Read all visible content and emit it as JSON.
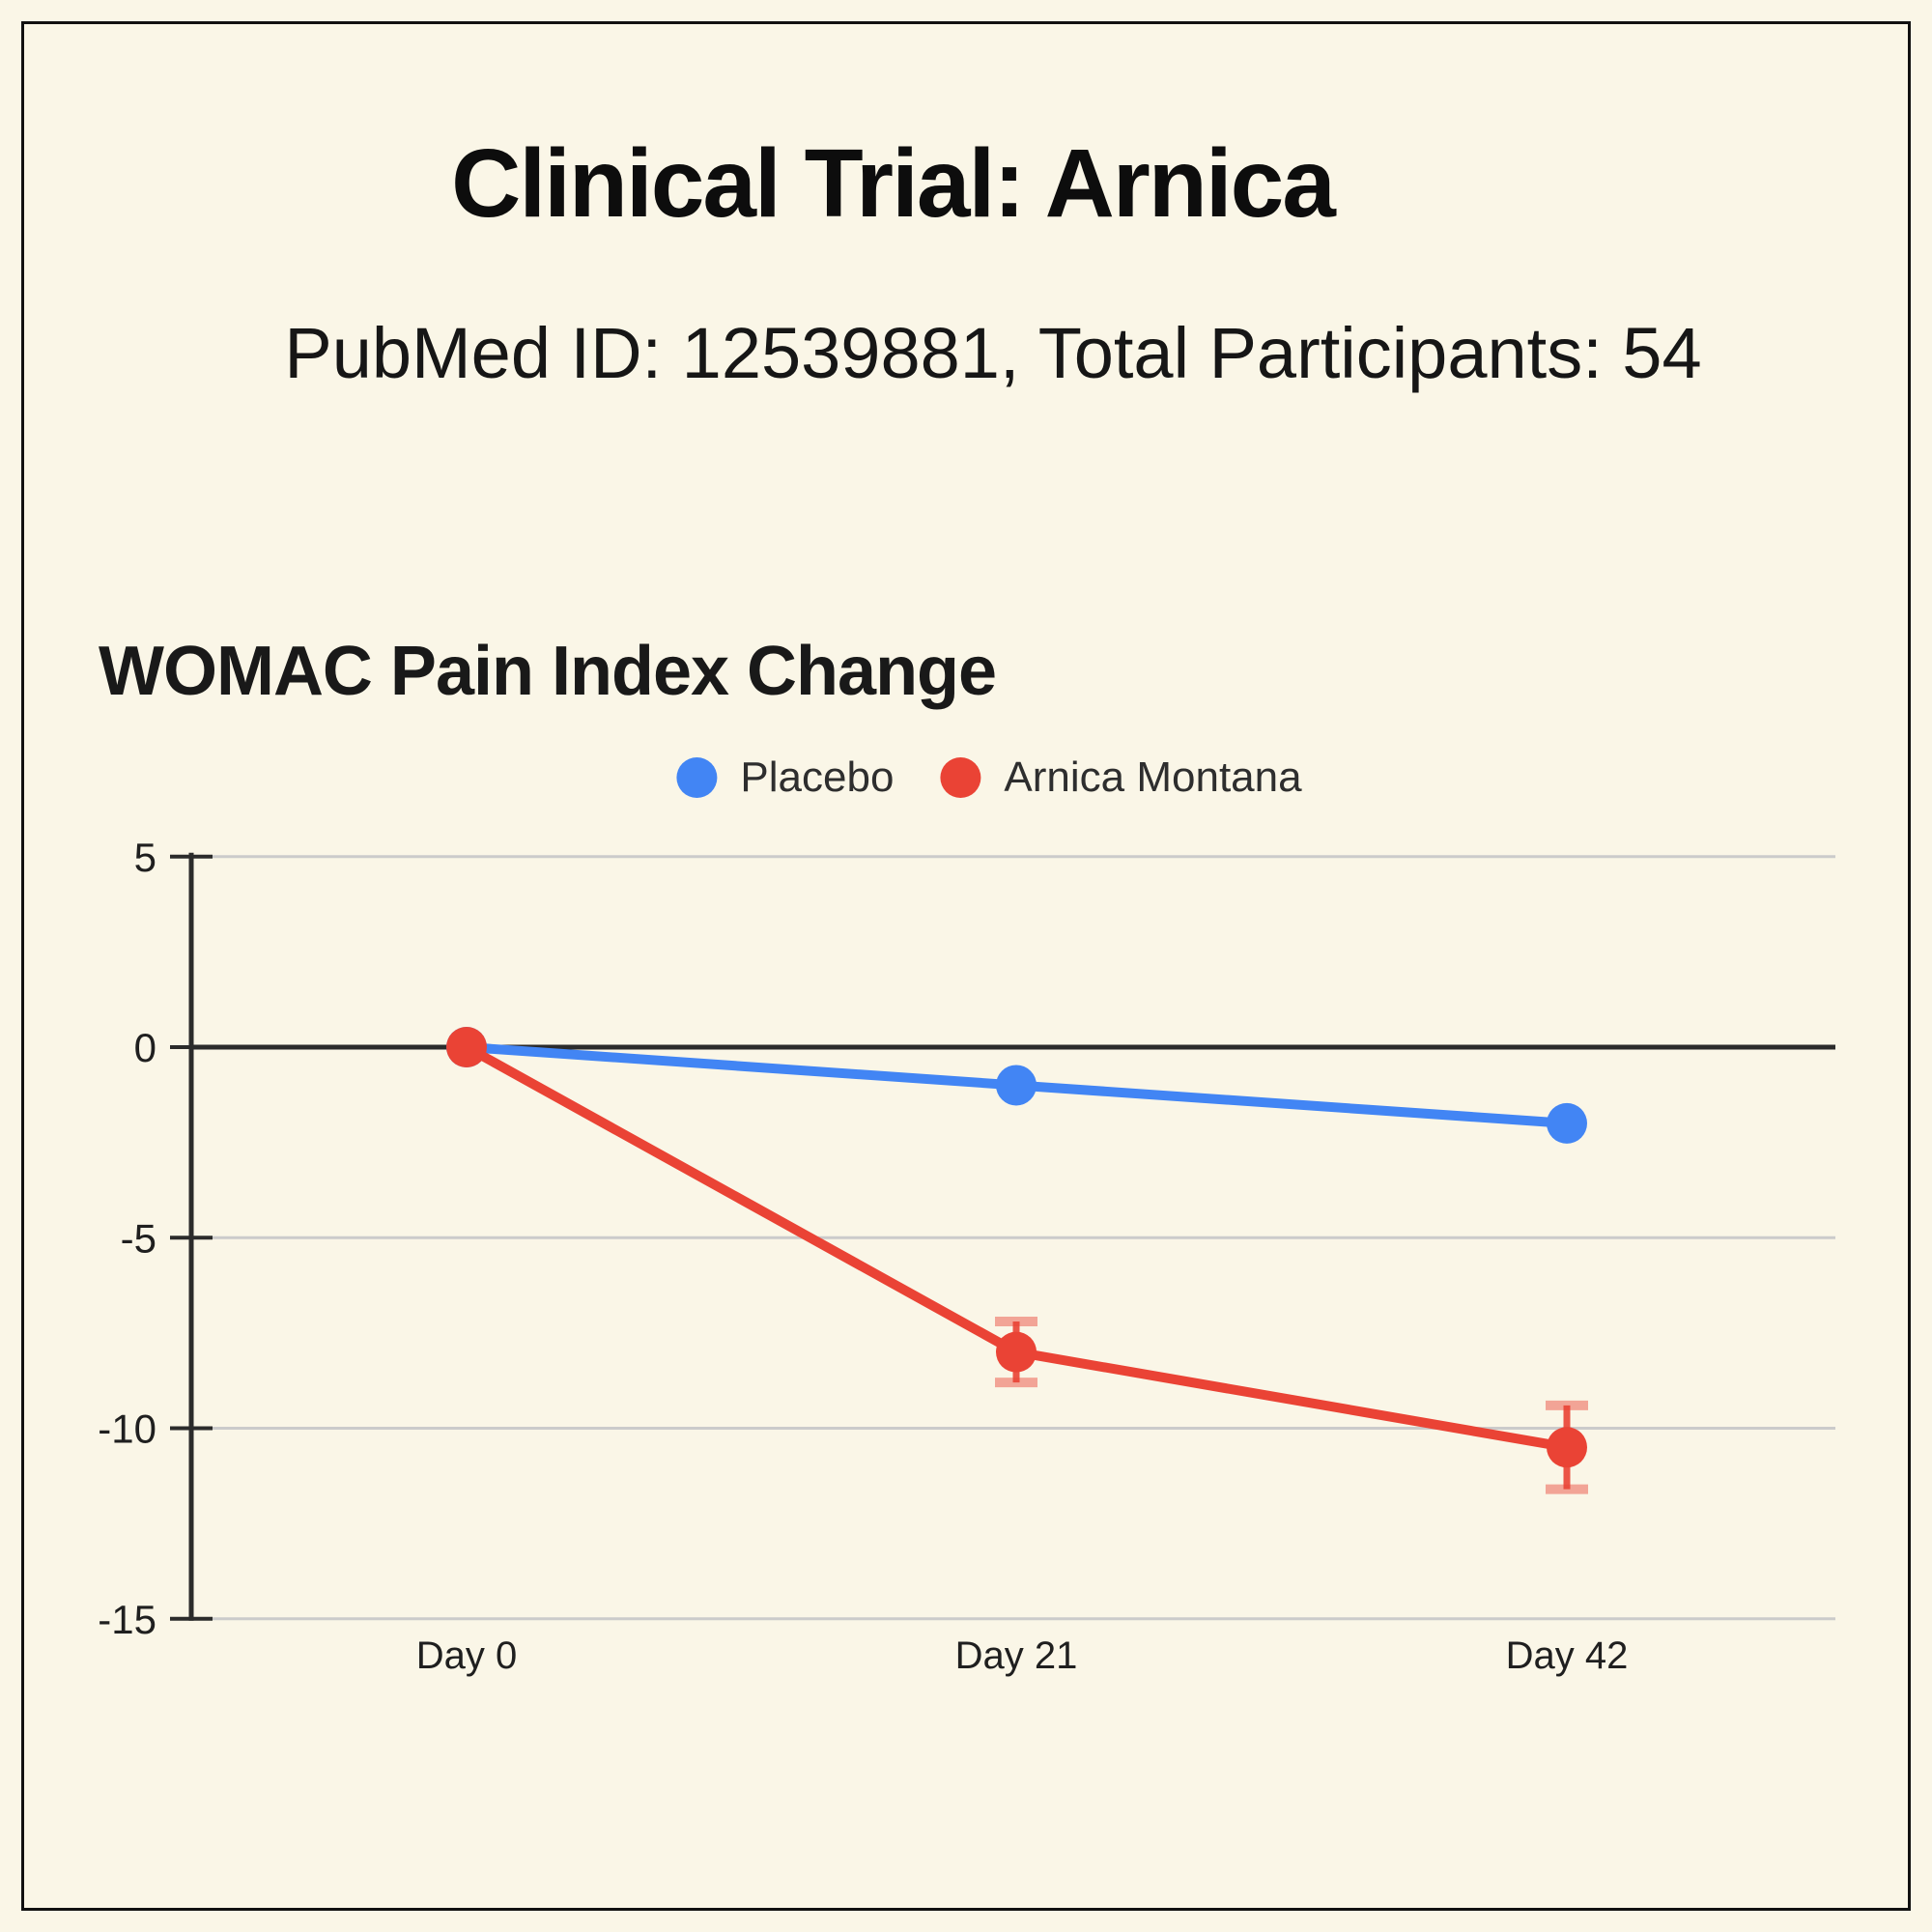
{
  "header": {
    "title": "Clinical Trial: Arnica",
    "subtitle": "PubMed ID: 12539881, Total Participants: 54"
  },
  "chart_data": {
    "type": "line",
    "title": "WOMAC Pain Index Change",
    "categories": [
      "Day 0",
      "Day 21",
      "Day 42"
    ],
    "series": [
      {
        "name": "Placebo",
        "color": "#4285F4",
        "values": [
          0,
          -1,
          -2
        ],
        "error": [
          null,
          null,
          null
        ]
      },
      {
        "name": "Arnica Montana",
        "color": "#EA4335",
        "values": [
          0,
          -8,
          -10.5
        ],
        "error": [
          null,
          0.8,
          1.1
        ]
      }
    ],
    "ylim": [
      -15,
      5
    ],
    "yticks": [
      5,
      0,
      -5,
      -10,
      -15
    ],
    "grid": true,
    "legend_position": "top-center",
    "xlabel": "",
    "ylabel": ""
  },
  "colors": {
    "background": "#FAF6E7",
    "border": "#111111",
    "gridline": "#CBCBCB",
    "axis": "#2B2B2B",
    "placebo": "#4285F4",
    "arnica": "#EA4335"
  }
}
